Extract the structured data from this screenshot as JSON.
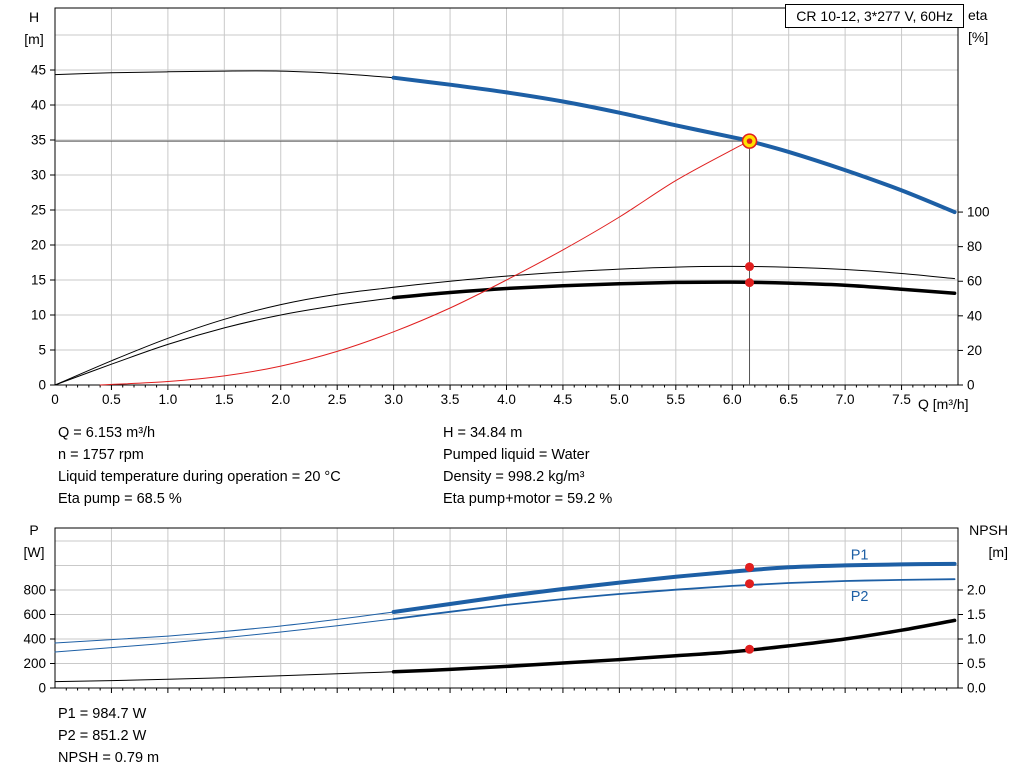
{
  "axis_titles": {
    "h_symbol": "H",
    "h_unit": "[m]",
    "eta_symbol": "eta",
    "eta_unit": "[%]",
    "q_label": "Q [m³/h]",
    "p_symbol": "P",
    "p_unit": "[W]",
    "npsh_symbol": "NPSH",
    "npsh_unit": "[m]"
  },
  "info_top": {
    "left": [
      "Q = 6.153 m³/h",
      "n = 1757 rpm",
      "Liquid temperature during operation = 20 °C",
      "Eta pump = 68.5 %"
    ],
    "right": [
      "H = 34.84 m",
      "Pumped liquid = Water",
      "Density = 998.2 kg/m³",
      "Eta pump+motor = 59.2 %"
    ]
  },
  "info_bottom": [
    "P1 = 984.7 W",
    "P2 = 851.2 W",
    "NPSH = 0.79 m"
  ],
  "colors": {
    "grid": "#c9c9c9",
    "axis": "#000000",
    "crosshair": "#555555",
    "curve_blue": "#1d5fa5",
    "curve_black": "#000000",
    "curve_red": "#e01f1f",
    "dot_red": "#e01f1f",
    "duty_fill": "#ffe100",
    "duty_ring": "#e01f1f"
  },
  "chart_data": [
    {
      "type": "line",
      "name": "qh-eta-chart",
      "title": "CR 10-12, 3*277 V, 60Hz",
      "xlabel": "Q [m³/h]",
      "ylabel_left": "H [m]",
      "ylabel_right": "eta [%]",
      "grid": true,
      "xlim": [
        0,
        8.0
      ],
      "ylim_left": [
        0,
        53.86
      ],
      "ylim_right": [
        0,
        218
      ],
      "x_ticks": [
        0,
        0.5,
        1.0,
        1.5,
        2.0,
        2.5,
        3.0,
        3.5,
        4.0,
        4.5,
        5.0,
        5.5,
        6.0,
        6.5,
        7.0,
        7.5
      ],
      "x_tick_labels": [
        "0",
        "0.5",
        "1.0",
        "1.5",
        "2.0",
        "2.5",
        "3.0",
        "3.5",
        "4.0",
        "4.5",
        "5.0",
        "5.5",
        "6.0",
        "6.5",
        "7.0",
        "7.5"
      ],
      "y_ticks_left": [
        0,
        5,
        10,
        15,
        20,
        25,
        30,
        35,
        40,
        45
      ],
      "y_tick_labels_left": [
        "0",
        "5",
        "10",
        "15",
        "20",
        "25",
        "30",
        "35",
        "40",
        "45"
      ],
      "y_ticks_right": [
        0,
        20,
        40,
        60,
        80,
        100
      ],
      "y_tick_labels_right": [
        "0",
        "20",
        "40",
        "60",
        "80",
        "100"
      ],
      "y_grid": [
        5,
        10,
        15,
        20,
        25,
        30,
        35,
        40,
        45,
        50
      ],
      "series": [
        {
          "name": "qh-curve-low-flow",
          "axis": "left",
          "color": "#000000",
          "width": 1,
          "x": [
            0,
            0.5,
            1.0,
            1.5,
            2.0,
            2.5,
            3.0
          ],
          "y": [
            44.35,
            44.6,
            44.75,
            44.85,
            44.85,
            44.5,
            43.9
          ]
        },
        {
          "name": "qh-curve",
          "axis": "left",
          "color": "#1d5fa5",
          "width": 4,
          "x": [
            3.0,
            3.5,
            4.0,
            4.5,
            5.0,
            5.5,
            6.0,
            6.153,
            6.5,
            7.0,
            7.5,
            7.97
          ],
          "y": [
            43.9,
            42.9,
            41.8,
            40.5,
            38.9,
            37.1,
            35.4,
            34.84,
            33.3,
            30.7,
            27.8,
            24.7
          ]
        },
        {
          "name": "eta-pump-curve",
          "axis": "right",
          "color": "#000000",
          "width": 1,
          "x": [
            0,
            0.5,
            1.0,
            1.5,
            2.0,
            2.5,
            3.0,
            3.5,
            4.0,
            4.5,
            5.0,
            5.5,
            6.0,
            6.5,
            7.0,
            7.5,
            7.97
          ],
          "y": [
            0,
            14,
            27,
            38,
            46.5,
            52.5,
            56.5,
            60,
            63,
            65.3,
            67,
            68.2,
            68.6,
            68.1,
            66.8,
            64.5,
            61.5
          ]
        },
        {
          "name": "eta-pump-motor-curve-low-flow",
          "axis": "right",
          "color": "#000000",
          "width": 1,
          "x": [
            0,
            0.5,
            1.0,
            1.5,
            2.0,
            2.5,
            3.0
          ],
          "y": [
            0,
            12,
            23.5,
            33,
            40.5,
            46,
            50.5
          ]
        },
        {
          "name": "eta-pump-motor-curve",
          "axis": "right",
          "color": "#000000",
          "width": 3.5,
          "x": [
            3.0,
            3.5,
            4.0,
            4.5,
            5.0,
            5.5,
            6.0,
            6.5,
            7.0,
            7.5,
            7.97
          ],
          "y": [
            50.5,
            53.5,
            55.8,
            57.4,
            58.6,
            59.3,
            59.5,
            58.9,
            57.7,
            55.4,
            53.0
          ]
        },
        {
          "name": "system-curve",
          "axis": "left",
          "color": "#e01f1f",
          "width": 1,
          "x": [
            0.4,
            1.0,
            1.5,
            2.0,
            2.5,
            3.0,
            3.5,
            4.0,
            4.5,
            5.0,
            5.5,
            6.0,
            6.153
          ],
          "y": [
            0,
            0.5,
            1.3,
            2.7,
            4.8,
            7.6,
            11.0,
            15.0,
            19.3,
            24.0,
            29.2,
            33.6,
            34.84
          ]
        }
      ],
      "duty_point": {
        "q": 6.153,
        "h": 34.84
      },
      "markers": [
        {
          "name": "eta-pump-point",
          "axis": "right",
          "q": 6.153,
          "v": 68.5
        },
        {
          "name": "eta-pump-motor-point",
          "axis": "right",
          "q": 6.153,
          "v": 59.2
        }
      ]
    },
    {
      "type": "line",
      "name": "power-npsh-chart",
      "ylabel_left": "P [W]",
      "ylabel_right": "NPSH [m]",
      "grid": true,
      "xlim": [
        0,
        8.0
      ],
      "ylim_left": [
        0,
        1306
      ],
      "ylim_right": [
        0,
        3.265
      ],
      "x_ticks": [
        0,
        0.5,
        1.0,
        1.5,
        2.0,
        2.5,
        3.0,
        3.5,
        4.0,
        4.5,
        5.0,
        5.5,
        6.0,
        6.5,
        7.0,
        7.5
      ],
      "y_ticks_left": [
        0,
        200,
        400,
        600,
        800
      ],
      "y_tick_labels_left": [
        "0",
        "200",
        "400",
        "600",
        "800"
      ],
      "y_ticks_right": [
        0.0,
        0.5,
        1.0,
        1.5,
        2.0
      ],
      "y_tick_labels_right": [
        "0.0",
        "0.5",
        "1.0",
        "1.5",
        "2.0"
      ],
      "y_grid": [
        200,
        400,
        600,
        800,
        1000,
        1200
      ],
      "series": [
        {
          "name": "p1-curve-low-flow",
          "axis": "left",
          "color": "#1d5fa5",
          "width": 1,
          "x": [
            0,
            0.5,
            1.0,
            1.5,
            2.0,
            2.5,
            3.0
          ],
          "y": [
            367,
            395,
            424,
            462,
            506,
            560,
            620
          ]
        },
        {
          "name": "p1-curve",
          "axis": "left",
          "color": "#1d5fa5",
          "width": 4,
          "x": [
            3.0,
            3.5,
            4.0,
            4.5,
            5.0,
            5.5,
            6.0,
            6.5,
            7.0,
            7.5,
            7.97
          ],
          "y": [
            620,
            686,
            751,
            808,
            860,
            908,
            950,
            985,
            1001,
            1009,
            1013
          ]
        },
        {
          "name": "p2-curve-low-flow",
          "axis": "left",
          "color": "#1d5fa5",
          "width": 1,
          "x": [
            0,
            0.5,
            1.0,
            1.5,
            2.0,
            2.5,
            3.0
          ],
          "y": [
            294,
            330,
            367,
            410,
            457,
            508,
            563
          ]
        },
        {
          "name": "p2-curve",
          "axis": "left",
          "color": "#1d5fa5",
          "width": 1.8,
          "x": [
            3.0,
            3.5,
            4.0,
            4.5,
            5.0,
            5.5,
            6.0,
            6.5,
            7.0,
            7.5,
            7.97
          ],
          "y": [
            563,
            622,
            678,
            726,
            767,
            802,
            833,
            857,
            873,
            882,
            888
          ]
        },
        {
          "name": "npsh-curve-low-flow",
          "axis": "right",
          "color": "#000000",
          "width": 1,
          "x": [
            0,
            0.5,
            1.0,
            1.5,
            2.0,
            2.5,
            3.0
          ],
          "y": [
            0.13,
            0.15,
            0.18,
            0.21,
            0.25,
            0.29,
            0.33
          ]
        },
        {
          "name": "npsh-curve",
          "axis": "right",
          "color": "#000000",
          "width": 3.5,
          "x": [
            3.0,
            3.5,
            4.0,
            4.5,
            5.0,
            5.5,
            6.0,
            6.5,
            7.0,
            7.5,
            7.97
          ],
          "y": [
            0.33,
            0.38,
            0.44,
            0.51,
            0.58,
            0.66,
            0.74,
            0.86,
            1.0,
            1.18,
            1.38
          ]
        }
      ],
      "markers": [
        {
          "name": "p1-point",
          "axis": "left",
          "q": 6.153,
          "v": 984.7
        },
        {
          "name": "p2-point",
          "axis": "left",
          "q": 6.153,
          "v": 851.2
        },
        {
          "name": "npsh-point",
          "axis": "right",
          "q": 6.153,
          "v": 0.79
        }
      ],
      "curve_labels": [
        {
          "name": "p1-label",
          "text": "P1",
          "q": 7.05,
          "v": 1050,
          "axis": "left",
          "color": "#1d5fa5"
        },
        {
          "name": "p2-label",
          "text": "P2",
          "q": 7.05,
          "v": 710,
          "axis": "left",
          "color": "#1d5fa5"
        }
      ]
    }
  ]
}
